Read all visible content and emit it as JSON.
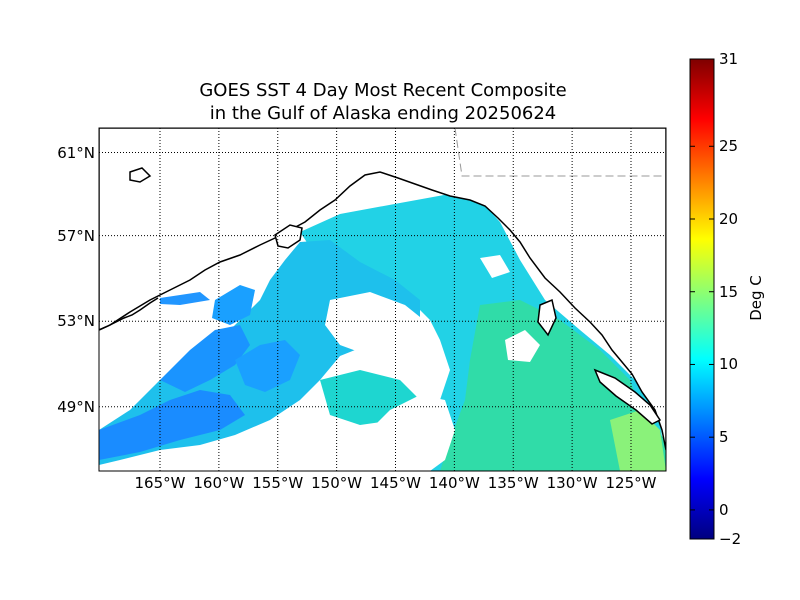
{
  "title_line1": "GOES SST 4 Day Most Recent Composite",
  "title_line2": "in the Gulf of Alaska ending 20250624",
  "lat_labels": [
    {
      "text": "61°N",
      "lat": 61
    },
    {
      "text": "57°N",
      "lat": 57
    },
    {
      "text": "53°N",
      "lat": 53
    },
    {
      "text": "49°N",
      "lat": 49
    }
  ],
  "lon_labels": [
    {
      "text": "165°W",
      "lon": -165
    },
    {
      "text": "160°W",
      "lon": -160
    },
    {
      "text": "155°W",
      "lon": -155
    },
    {
      "text": "150°W",
      "lon": -150
    },
    {
      "text": "145°W",
      "lon": -145
    },
    {
      "text": "140°W",
      "lon": -140
    },
    {
      "text": "135°W",
      "lon": -135
    },
    {
      "text": "130°W",
      "lon": -130
    },
    {
      "text": "125°W",
      "lon": -125
    }
  ],
  "colorbar": {
    "label": "Deg C",
    "min": -2,
    "max": 31,
    "ticks": [
      {
        "text": "31",
        "value": 31
      },
      {
        "text": "25",
        "value": 25
      },
      {
        "text": "20",
        "value": 20
      },
      {
        "text": "15",
        "value": 15
      },
      {
        "text": "10",
        "value": 10
      },
      {
        "text": "5",
        "value": 5
      },
      {
        "text": "0",
        "value": 0
      },
      {
        "text": "−2",
        "value": -2
      }
    ],
    "colormap": [
      "#00007f",
      "#0000ff",
      "#007fff",
      "#00ffff",
      "#7fff7f",
      "#ffff00",
      "#ff7f00",
      "#ff0000",
      "#7f0000"
    ]
  },
  "colors": {
    "land_coast": "#000000",
    "no_data": "#ffffff",
    "sst_cold": "#1a8cff",
    "sst_mid": "#1ec8f0",
    "sst_warm": "#3de8b0",
    "sst_warmer": "#80ff80"
  }
}
